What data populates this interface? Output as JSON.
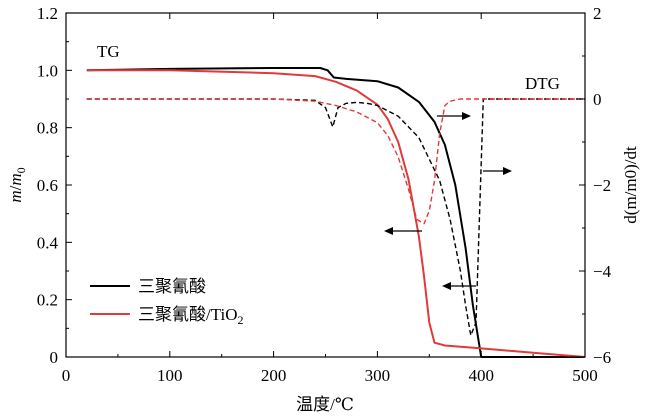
{
  "chart_data": {
    "type": "line",
    "x_axis": {
      "label": "温度/℃",
      "min": 0,
      "max": 500,
      "ticks": [
        0,
        100,
        200,
        300,
        400,
        500
      ]
    },
    "y_left": {
      "label_italic_m": "m",
      "label_slash": "/",
      "label_italic_m0": "m",
      "label_sub": "0",
      "min": 0,
      "max": 1.2,
      "ticks": [
        0,
        0.2,
        0.4,
        0.6,
        0.8,
        1.0,
        1.2
      ],
      "tick_labels": [
        "0",
        "0.2",
        "0.4",
        "0.6",
        "0.8",
        "1.0",
        "1.2"
      ]
    },
    "y_right": {
      "label": "d(m/m0)/dt",
      "min": -6,
      "max": 2,
      "ticks": [
        -6,
        -4,
        -2,
        0,
        2
      ],
      "tick_labels": [
        "−6",
        "−4",
        "−2",
        "0",
        "2"
      ]
    },
    "annotations": {
      "tg": "TG",
      "dtg": "DTG"
    },
    "legend": {
      "placement": "bottom-left",
      "items": [
        {
          "name": "三聚氰酸",
          "sub": "",
          "color": "#000000"
        },
        {
          "name": "三聚氰酸/TiO",
          "sub": "2",
          "color": "#e03a3a"
        }
      ]
    },
    "series": [
      {
        "name": "三聚氰酸",
        "kind": "TG",
        "axis": "left",
        "color": "#000000",
        "style": "solid",
        "x": [
          20,
          100,
          200,
          245,
          252,
          258,
          270,
          300,
          320,
          340,
          355,
          365,
          375,
          385,
          392,
          400,
          500
        ],
        "y": [
          1.0,
          1.005,
          1.008,
          1.008,
          1.0,
          0.975,
          0.97,
          0.962,
          0.94,
          0.89,
          0.82,
          0.74,
          0.6,
          0.38,
          0.18,
          0.0,
          0.0
        ]
      },
      {
        "name": "三聚氰酸/TiO2",
        "kind": "TG",
        "axis": "left",
        "color": "#e03a3a",
        "style": "solid",
        "x": [
          20,
          100,
          200,
          240,
          260,
          280,
          300,
          310,
          320,
          330,
          340,
          345,
          350,
          355,
          365,
          400,
          450,
          500
        ],
        "y": [
          1.0,
          1.0,
          0.99,
          0.98,
          0.96,
          0.93,
          0.88,
          0.83,
          0.75,
          0.62,
          0.42,
          0.28,
          0.12,
          0.05,
          0.04,
          0.03,
          0.015,
          0.0
        ]
      },
      {
        "name": "三聚氰酸",
        "kind": "DTG",
        "axis": "right",
        "color": "#000000",
        "style": "dashed",
        "x": [
          20,
          100,
          200,
          240,
          250,
          257,
          262,
          270,
          280,
          290,
          300,
          320,
          340,
          360,
          370,
          380,
          385,
          390,
          395,
          398,
          402,
          410,
          500
        ],
        "y": [
          0,
          0,
          0,
          -0.03,
          -0.2,
          -0.65,
          -0.2,
          -0.1,
          -0.08,
          -0.1,
          -0.15,
          -0.4,
          -0.9,
          -1.9,
          -2.8,
          -4.0,
          -4.8,
          -5.5,
          -5.2,
          -3.0,
          0,
          0,
          0
        ]
      },
      {
        "name": "三聚氰酸/TiO2",
        "kind": "DTG",
        "axis": "right",
        "color": "#e03a3a",
        "style": "dashed",
        "x": [
          20,
          100,
          200,
          240,
          260,
          280,
          300,
          310,
          320,
          330,
          338,
          345,
          350,
          355,
          360,
          365,
          370,
          380,
          400,
          500
        ],
        "y": [
          0,
          0,
          0,
          -0.05,
          -0.15,
          -0.3,
          -0.55,
          -0.85,
          -1.35,
          -2.1,
          -2.8,
          -2.9,
          -2.6,
          -1.9,
          -0.8,
          -0.15,
          -0.05,
          0,
          0,
          0
        ]
      }
    ]
  }
}
